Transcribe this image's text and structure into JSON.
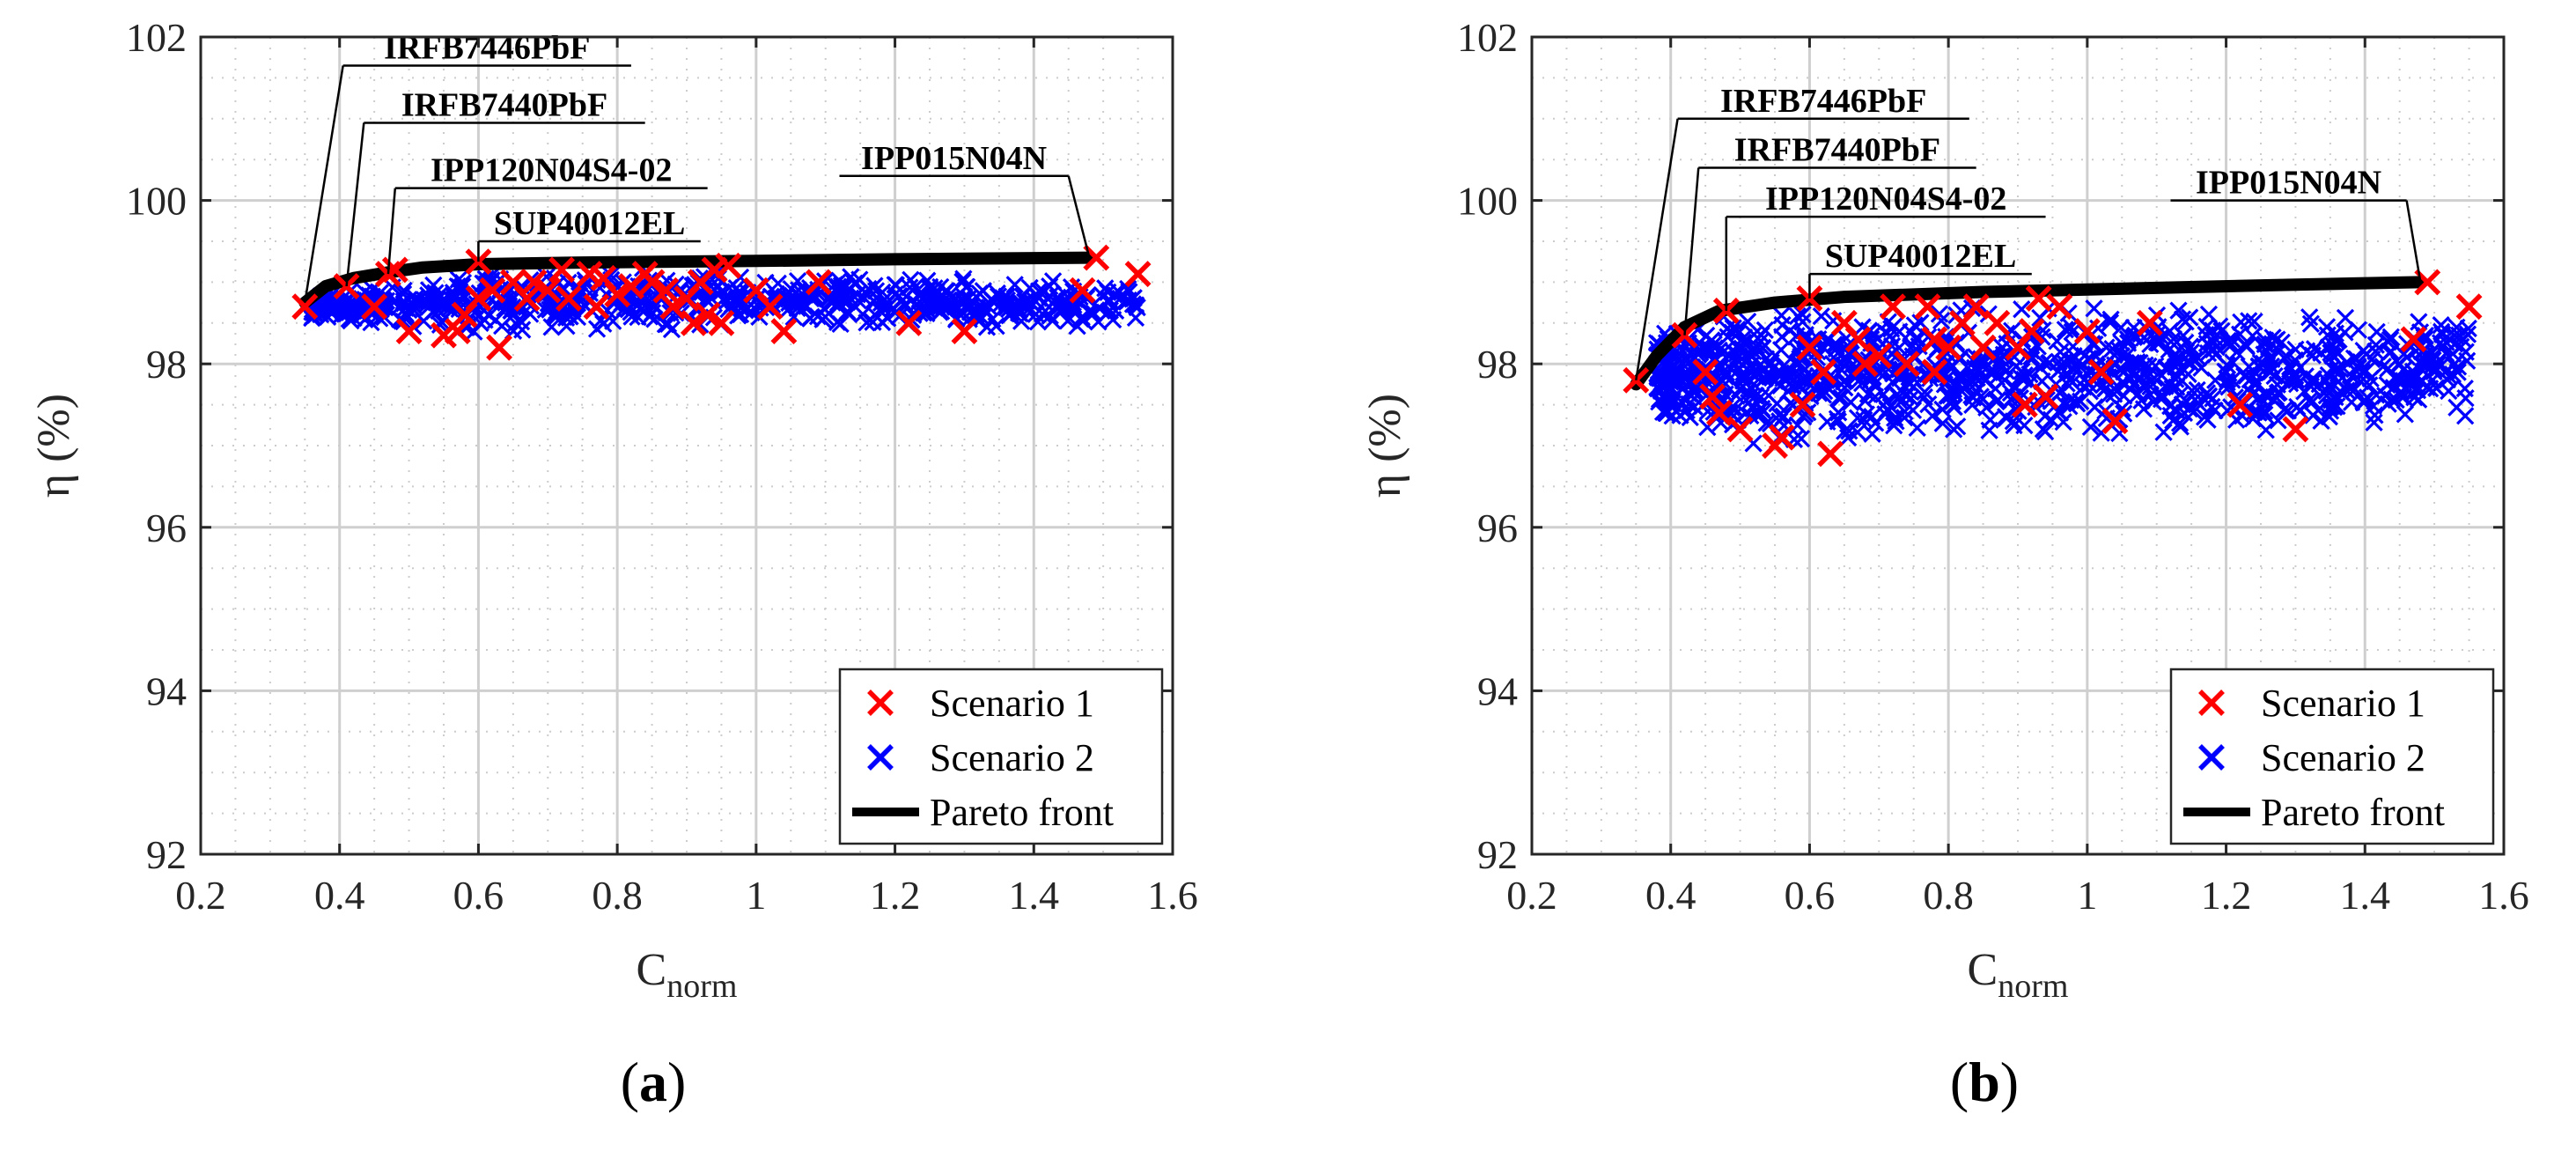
{
  "colors": {
    "scenario1": "#ff0000",
    "scenario2": "#0000ff",
    "pareto": "#000000",
    "grid": "#d0d0d0"
  },
  "chart_data": [
    {
      "type": "scatter",
      "panel_label": "(a)",
      "xlabel": {
        "main": "C",
        "sub": "norm"
      },
      "ylabel": "η (%)",
      "xlim": [
        0.2,
        1.6
      ],
      "ylim": [
        92,
        102
      ],
      "xticks": [
        "0.2",
        "0.4",
        "0.6",
        "0.8",
        "1",
        "1.2",
        "1.4",
        "1.6"
      ],
      "yticks": [
        "92",
        "94",
        "96",
        "98",
        "100",
        "102"
      ],
      "grid": true,
      "legend": {
        "position": "bottom-right",
        "entries": [
          "Scenario 1",
          "Scenario 2",
          "Pareto front"
        ]
      },
      "series": [
        {
          "name": "Scenario 1",
          "marker": "x",
          "color": "red",
          "points": [
            [
              0.35,
              98.7
            ],
            [
              0.41,
              98.95
            ],
            [
              0.45,
              98.7
            ],
            [
              0.47,
              99.1
            ],
            [
              0.48,
              99.15
            ],
            [
              0.5,
              98.4
            ],
            [
              0.55,
              98.35
            ],
            [
              0.57,
              98.4
            ],
            [
              0.58,
              98.6
            ],
            [
              0.6,
              99.25
            ],
            [
              0.6,
              98.8
            ],
            [
              0.62,
              98.9
            ],
            [
              0.63,
              98.2
            ],
            [
              0.65,
              99.0
            ],
            [
              0.67,
              98.8
            ],
            [
              0.68,
              99.0
            ],
            [
              0.7,
              98.9
            ],
            [
              0.72,
              99.15
            ],
            [
              0.73,
              98.8
            ],
            [
              0.76,
              99.1
            ],
            [
              0.77,
              98.7
            ],
            [
              0.78,
              99.05
            ],
            [
              0.8,
              98.85
            ],
            [
              0.82,
              98.95
            ],
            [
              0.84,
              99.1
            ],
            [
              0.85,
              99.0
            ],
            [
              0.87,
              98.9
            ],
            [
              0.88,
              98.7
            ],
            [
              0.9,
              98.8
            ],
            [
              0.91,
              98.5
            ],
            [
              0.92,
              99.0
            ],
            [
              0.93,
              98.6
            ],
            [
              0.94,
              99.15
            ],
            [
              0.95,
              98.5
            ],
            [
              0.96,
              99.2
            ],
            [
              1.0,
              98.9
            ],
            [
              1.02,
              98.7
            ],
            [
              1.04,
              98.4
            ],
            [
              1.09,
              99.0
            ],
            [
              1.22,
              98.5
            ],
            [
              1.3,
              98.4
            ],
            [
              1.47,
              98.9
            ],
            [
              1.49,
              99.3
            ],
            [
              1.55,
              99.1
            ]
          ]
        },
        {
          "name": "Scenario 2",
          "marker": "x",
          "color": "blue",
          "cluster": {
            "x_range": [
              0.36,
              1.55
            ],
            "y_bands": [
              [
                0.36,
                98.55,
                98.85
              ],
              [
                0.6,
                98.35,
                99.15
              ],
              [
                0.9,
                98.4,
                99.2
              ],
              [
                1.2,
                98.45,
                99.1
              ],
              [
                1.55,
                98.4,
                99.0
              ]
            ],
            "count": 700
          }
        },
        {
          "name": "Pareto front",
          "marker": "line",
          "color": "black",
          "points": [
            [
              0.35,
              98.75
            ],
            [
              0.38,
              98.95
            ],
            [
              0.42,
              99.05
            ],
            [
              0.47,
              99.12
            ],
            [
              0.52,
              99.18
            ],
            [
              0.6,
              99.22
            ],
            [
              0.75,
              99.24
            ],
            [
              1.0,
              99.26
            ],
            [
              1.2,
              99.28
            ],
            [
              1.48,
              99.3
            ]
          ]
        }
      ],
      "annotations": [
        {
          "label": "IRFB7446PbF",
          "point": [
            0.35,
            98.75
          ],
          "bar": [
            0.405,
            0.82
          ],
          "y": 101.65
        },
        {
          "label": "IRFB7440PbF",
          "point": [
            0.41,
            98.95
          ],
          "bar": [
            0.435,
            0.84
          ],
          "y": 100.95
        },
        {
          "label": "IPP120N04S4-02",
          "point": [
            0.47,
            99.1
          ],
          "bar": [
            0.48,
            0.93
          ],
          "y": 100.15
        },
        {
          "label": "SUP40012EL",
          "point": [
            0.6,
            99.25
          ],
          "bar": [
            0.6,
            0.92
          ],
          "y": 99.5
        },
        {
          "label": "IPP015N04N",
          "point": [
            1.48,
            99.3
          ],
          "bar": [
            1.12,
            1.45
          ],
          "y": 100.3
        }
      ]
    },
    {
      "type": "scatter",
      "panel_label": "(b)",
      "xlabel": {
        "main": "C",
        "sub": "norm"
      },
      "ylabel": "η (%)",
      "xlim": [
        0.2,
        1.6
      ],
      "ylim": [
        92,
        102
      ],
      "xticks": [
        "0.2",
        "0.4",
        "0.6",
        "0.8",
        "1",
        "1.2",
        "1.4",
        "1.6"
      ],
      "yticks": [
        "92",
        "94",
        "96",
        "98",
        "100",
        "102"
      ],
      "grid": true,
      "legend": {
        "position": "bottom-right",
        "entries": [
          "Scenario 1",
          "Scenario 2",
          "Pareto front"
        ]
      },
      "series": [
        {
          "name": "Scenario 1",
          "marker": "x",
          "color": "red",
          "points": [
            [
              0.35,
              97.8
            ],
            [
              0.42,
              98.35
            ],
            [
              0.45,
              97.9
            ],
            [
              0.46,
              97.6
            ],
            [
              0.47,
              97.4
            ],
            [
              0.48,
              98.65
            ],
            [
              0.5,
              97.2
            ],
            [
              0.55,
              97.0
            ],
            [
              0.56,
              97.1
            ],
            [
              0.59,
              97.5
            ],
            [
              0.6,
              98.8
            ],
            [
              0.6,
              98.2
            ],
            [
              0.62,
              97.9
            ],
            [
              0.63,
              96.9
            ],
            [
              0.65,
              98.5
            ],
            [
              0.67,
              98.3
            ],
            [
              0.68,
              98.0
            ],
            [
              0.7,
              98.1
            ],
            [
              0.72,
              98.7
            ],
            [
              0.74,
              98.0
            ],
            [
              0.77,
              98.7
            ],
            [
              0.78,
              98.3
            ],
            [
              0.78,
              97.9
            ],
            [
              0.8,
              98.2
            ],
            [
              0.82,
              98.5
            ],
            [
              0.84,
              98.7
            ],
            [
              0.85,
              98.2
            ],
            [
              0.87,
              98.5
            ],
            [
              0.9,
              98.2
            ],
            [
              0.91,
              97.5
            ],
            [
              0.92,
              98.4
            ],
            [
              0.93,
              98.8
            ],
            [
              0.94,
              97.6
            ],
            [
              0.96,
              98.7
            ],
            [
              1.0,
              98.4
            ],
            [
              1.02,
              97.9
            ],
            [
              1.04,
              97.3
            ],
            [
              1.09,
              98.5
            ],
            [
              1.22,
              97.5
            ],
            [
              1.3,
              97.2
            ],
            [
              1.47,
              98.3
            ],
            [
              1.49,
              99.0
            ],
            [
              1.55,
              98.7
            ]
          ]
        },
        {
          "name": "Scenario 2",
          "marker": "x",
          "color": "blue",
          "cluster": {
            "x_range": [
              0.38,
              1.55
            ],
            "y_bands": [
              [
                0.38,
                97.3,
                98.5
              ],
              [
                0.55,
                96.9,
                98.7
              ],
              [
                0.85,
                97.0,
                98.8
              ],
              [
                1.2,
                97.1,
                98.7
              ],
              [
                1.55,
                97.3,
                98.6
              ]
            ],
            "count": 1100
          }
        },
        {
          "name": "Pareto front",
          "marker": "line",
          "color": "black",
          "points": [
            [
              0.35,
              97.75
            ],
            [
              0.38,
              98.1
            ],
            [
              0.42,
              98.45
            ],
            [
              0.47,
              98.65
            ],
            [
              0.55,
              98.75
            ],
            [
              0.65,
              98.82
            ],
            [
              0.85,
              98.88
            ],
            [
              1.1,
              98.93
            ],
            [
              1.3,
              98.97
            ],
            [
              1.48,
              99.0
            ]
          ]
        }
      ],
      "annotations": [
        {
          "label": "IRFB7446PbF",
          "point": [
            0.35,
            97.8
          ],
          "bar": [
            0.41,
            0.83
          ],
          "y": 101.0
        },
        {
          "label": "IRFB7440PbF",
          "point": [
            0.42,
            98.35
          ],
          "bar": [
            0.44,
            0.84
          ],
          "y": 100.4
        },
        {
          "label": "IPP120N04S4-02",
          "point": [
            0.48,
            98.65
          ],
          "bar": [
            0.48,
            0.94
          ],
          "y": 99.8
        },
        {
          "label": "SUP40012EL",
          "point": [
            0.6,
            98.8
          ],
          "bar": [
            0.6,
            0.92
          ],
          "y": 99.1
        },
        {
          "label": "IPP015N04N",
          "point": [
            1.48,
            99.0
          ],
          "bar": [
            1.12,
            1.46
          ],
          "y": 100.0
        }
      ]
    }
  ]
}
